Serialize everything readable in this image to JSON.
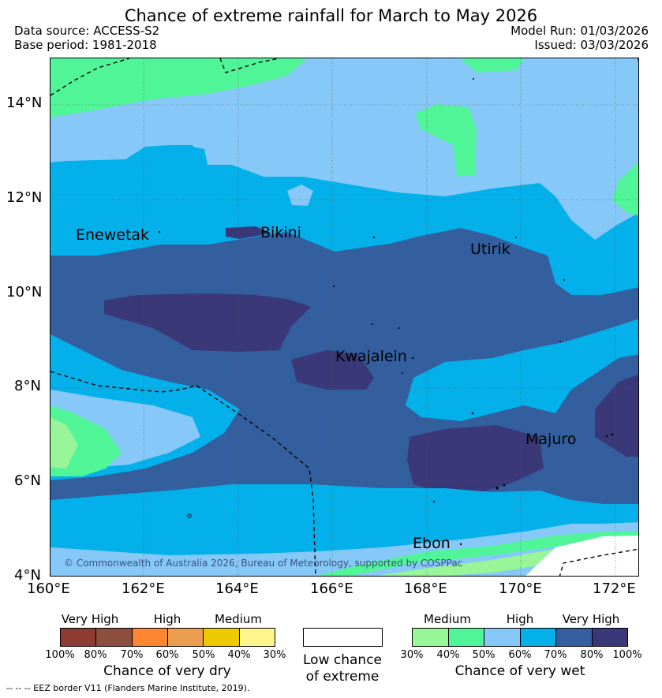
{
  "title": "Chance of extreme rainfall for March to May 2026",
  "header": {
    "data_source": "Data source: ACCESS-S2",
    "base_period": "Base period: 1981-2018",
    "model_run": "Model Run: 01/03/2026",
    "issued": "Issued: 03/03/2026"
  },
  "map": {
    "lat_labels": [
      "14°N",
      "12°N",
      "10°N",
      "8°N",
      "6°N",
      "4°N"
    ],
    "lon_labels": [
      "160°E",
      "162°E",
      "164°E",
      "166°E",
      "168°E",
      "170°E",
      "172°E"
    ],
    "places": [
      "Enewetak",
      "Bikini",
      "Utirik",
      "Kwajalein",
      "Majuro",
      "Ebon"
    ],
    "copyright": "© Commonwealth of Australia 2026, Bureau of Meteorology, supported by COSPPac",
    "colors": {
      "wet_30_40": "#98f598",
      "wet_40_50": "#50f598",
      "wet_50_60": "#86c9f8",
      "wet_60_70": "#03b0ea",
      "wet_70_80": "#335f9e",
      "wet_80_100": "#3a3878"
    }
  },
  "legend": {
    "dry": {
      "headers": [
        "Very High",
        "High",
        "Medium"
      ],
      "ticks": [
        "100%",
        "80%",
        "70%",
        "60%",
        "50%",
        "40%",
        "30%"
      ],
      "title": "Chance of very dry",
      "colors": [
        "#8e3b33",
        "#8c4e3e",
        "#fc8530",
        "#eb9e50",
        "#eeca05",
        "#fef58d"
      ]
    },
    "low": {
      "line1": "Low chance",
      "line2": "of extreme"
    },
    "wet": {
      "headers": [
        "Medium",
        "High",
        "Very High"
      ],
      "ticks": [
        "30%",
        "40%",
        "50%",
        "60%",
        "70%",
        "80%",
        "100%"
      ],
      "title": "Chance of very wet",
      "colors": [
        "#98f598",
        "#50f598",
        "#86c9f8",
        "#03b0ea",
        "#335f9e",
        "#3a3878"
      ]
    },
    "eez_note": "-- -- -- EEZ border V11 (Flanders Marine Institute, 2019)."
  }
}
